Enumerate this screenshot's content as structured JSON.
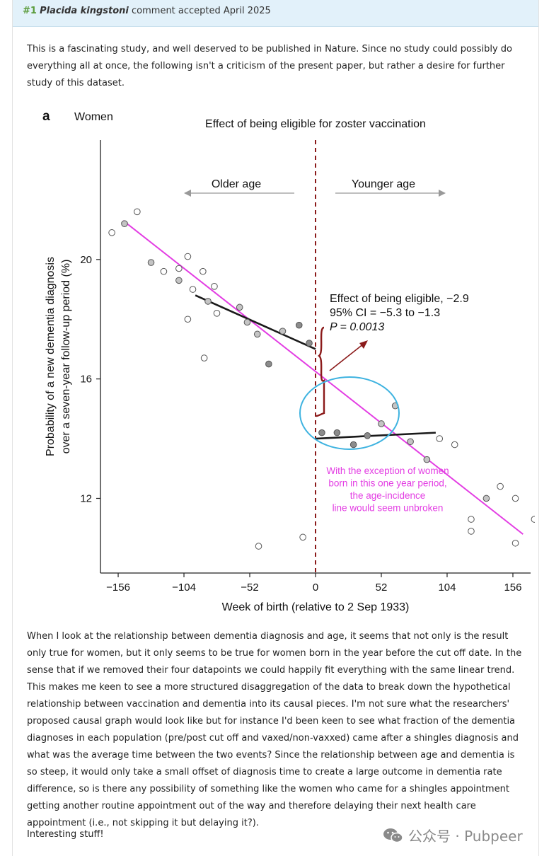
{
  "comment": {
    "number": "#1",
    "author": "Placida kingstoni",
    "status": "comment accepted April 2025",
    "intro": "This is a fascinating study, and well deserved to be published in Nature. Since no study could possibly do everything all at once, the following isn't a criticism of the present paper, but rather a desire for further study of this dataset.",
    "body": "When I look at the relationship between dementia diagnosis and age, it seems that not only is the result only true for women, but it only seems to be true for women born in the year before the cut off date. In the sense that if we removed their four datapoints we could happily fit everything with the same linear trend. This makes me keen to see a more structured disaggregation of the data to break down the hypothetical relationship between vaccination and dementia into its causal pieces. I'm not sure what the researchers' proposed causal graph would look like but for instance I'd been keen to see what fraction of the dementia diagnoses in each population (pre/post cut off and vaxed/non-vaxxed) came after a shingles diagnosis and what was the average time between the two events? Since the relationship between age and dementia is so steep, it would only take a small offset of diagnosis time to create a large outcome in dementia rate difference, so is there any possibility of something like the women who came for a shingles appointment getting another routine appointment out of the way and therefore delaying their next health care appointment (i.e., not skipping it but delaying it?).",
    "closing": "Interesting stuff!"
  },
  "watermark": {
    "text": "公众号 · Pubpeer"
  },
  "chart_data": {
    "type": "scatter",
    "panel_label": "a",
    "subtitle": "Women",
    "title": "Effect of being eligible for zoster vaccination",
    "xlabel": "Week of birth (relative to 2 Sep 1933)",
    "ylabel_line1": "Probability of a new dementia diagnosis",
    "ylabel_line2": "over a seven-year follow-up period (%)",
    "xlim": [
      -170,
      170
    ],
    "ylim": [
      9.5,
      24.0
    ],
    "xticks": [
      -156,
      -104,
      -52,
      0,
      52,
      104,
      156
    ],
    "xtick_labels": [
      "−156",
      "−104",
      "−52",
      "0",
      "52",
      "104",
      "156"
    ],
    "yticks": [
      12,
      16,
      20
    ],
    "ytick_labels": [
      "12",
      "16",
      "20"
    ],
    "cutoff_x": 0,
    "direction_left": "Older age",
    "direction_right": "Younger age",
    "effect_text": [
      "Effect of being eligible, −2.9",
      "95% CI = −5.3 to −1.3",
      "P = 0.0013"
    ],
    "note_text": [
      "With the exception of women",
      "born in this one year period,",
      "the age-incidence",
      "line would seem unbroken"
    ],
    "colors": {
      "open": "#ffffff",
      "light": "#c4c4c4",
      "dark": "#8c8c8c",
      "cutoff": "#8b1a1a",
      "trend": "#e33de3",
      "ellipse": "#3fb3e0",
      "fit": "#1a1a1a"
    },
    "series": [
      {
        "style": "open",
        "points": [
          [
            -173,
            20.6
          ],
          [
            -161,
            20.9
          ],
          [
            -141,
            21.6
          ],
          [
            -120,
            19.6
          ],
          [
            -89,
            19.6
          ],
          [
            -78,
            18.2
          ],
          [
            -101,
            20.1
          ],
          [
            -108,
            19.7
          ],
          [
            -97,
            19.0
          ],
          [
            -80,
            19.1
          ],
          [
            -88,
            16.7
          ],
          [
            -101,
            18.0
          ],
          [
            -45,
            10.4
          ],
          [
            -10,
            10.7
          ],
          [
            98,
            14.0
          ],
          [
            110,
            13.8
          ],
          [
            123,
            11.3
          ],
          [
            146,
            12.4
          ],
          [
            158,
            12.0
          ],
          [
            173,
            11.3
          ],
          [
            158,
            10.5
          ],
          [
            123,
            10.9
          ]
        ]
      },
      {
        "style": "light",
        "points": [
          [
            -151,
            21.2
          ],
          [
            -130,
            19.9
          ],
          [
            -108,
            19.3
          ],
          [
            -85,
            18.6
          ],
          [
            -60,
            18.4
          ],
          [
            -54,
            17.9
          ],
          [
            -46,
            17.5
          ],
          [
            -26,
            17.6
          ],
          [
            52,
            14.5
          ],
          [
            63,
            15.1
          ],
          [
            75,
            13.9
          ],
          [
            88,
            13.3
          ],
          [
            135,
            12.0
          ]
        ]
      },
      {
        "style": "dark",
        "points": [
          [
            -37,
            16.5
          ],
          [
            -13,
            17.8
          ],
          [
            -5,
            17.2
          ],
          [
            5,
            14.2
          ],
          [
            17,
            14.2
          ],
          [
            30,
            13.8
          ],
          [
            41,
            14.1
          ]
        ]
      }
    ],
    "fits": [
      {
        "style": "trend",
        "x": [
          -152,
          164
        ],
        "y": [
          21.3,
          10.8
        ]
      },
      {
        "style": "fit",
        "x": [
          -95,
          0
        ],
        "y": [
          18.8,
          17.0
        ]
      },
      {
        "style": "fit",
        "x": [
          0,
          95
        ],
        "y": [
          14.0,
          14.2
        ]
      }
    ]
  }
}
